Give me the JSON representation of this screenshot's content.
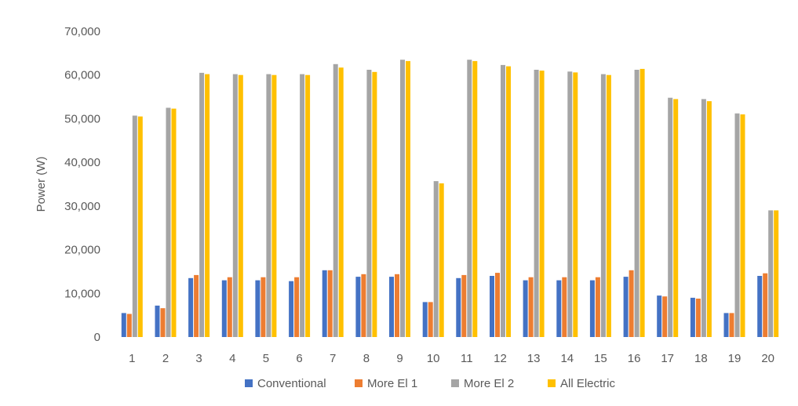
{
  "chart_data": {
    "type": "bar",
    "title": "",
    "xlabel": "",
    "ylabel": "Power (W)",
    "ylim": [
      0,
      70000
    ],
    "yticks": [
      "0",
      "10,000",
      "20,000",
      "30,000",
      "40,000",
      "50,000",
      "60,000",
      "70,000"
    ],
    "grid": false,
    "legend_position": "bottom",
    "categories": [
      "1",
      "2",
      "3",
      "4",
      "5",
      "6",
      "7",
      "8",
      "9",
      "10",
      "11",
      "12",
      "13",
      "14",
      "15",
      "16",
      "17",
      "18",
      "19",
      "20"
    ],
    "series": [
      {
        "name": "Conventional",
        "color": "#4472C4",
        "values": [
          5500,
          7200,
          13500,
          13000,
          13000,
          12800,
          15300,
          13800,
          13800,
          8000,
          13500,
          14000,
          13000,
          13000,
          13000,
          13800,
          9500,
          9000,
          5500,
          14000
        ]
      },
      {
        "name": "More El 1",
        "color": "#ED7D31",
        "values": [
          5300,
          6600,
          14200,
          13700,
          13700,
          13700,
          15300,
          14400,
          14400,
          8000,
          14200,
          14700,
          13700,
          13700,
          13700,
          15300,
          9300,
          8800,
          5500,
          14600
        ]
      },
      {
        "name": "More El 2",
        "color": "#A5A5A5",
        "values": [
          50700,
          52500,
          60500,
          60200,
          60200,
          60200,
          62500,
          61200,
          63500,
          35700,
          63500,
          62300,
          61200,
          60800,
          60200,
          61200,
          54800,
          54500,
          51200,
          29000
        ]
      },
      {
        "name": "All Electric",
        "color": "#FFC000",
        "values": [
          50500,
          52300,
          60200,
          60000,
          60000,
          60000,
          61700,
          60700,
          63200,
          35200,
          63200,
          62000,
          61000,
          60600,
          60000,
          61400,
          54500,
          54000,
          51000,
          29000
        ]
      }
    ]
  }
}
